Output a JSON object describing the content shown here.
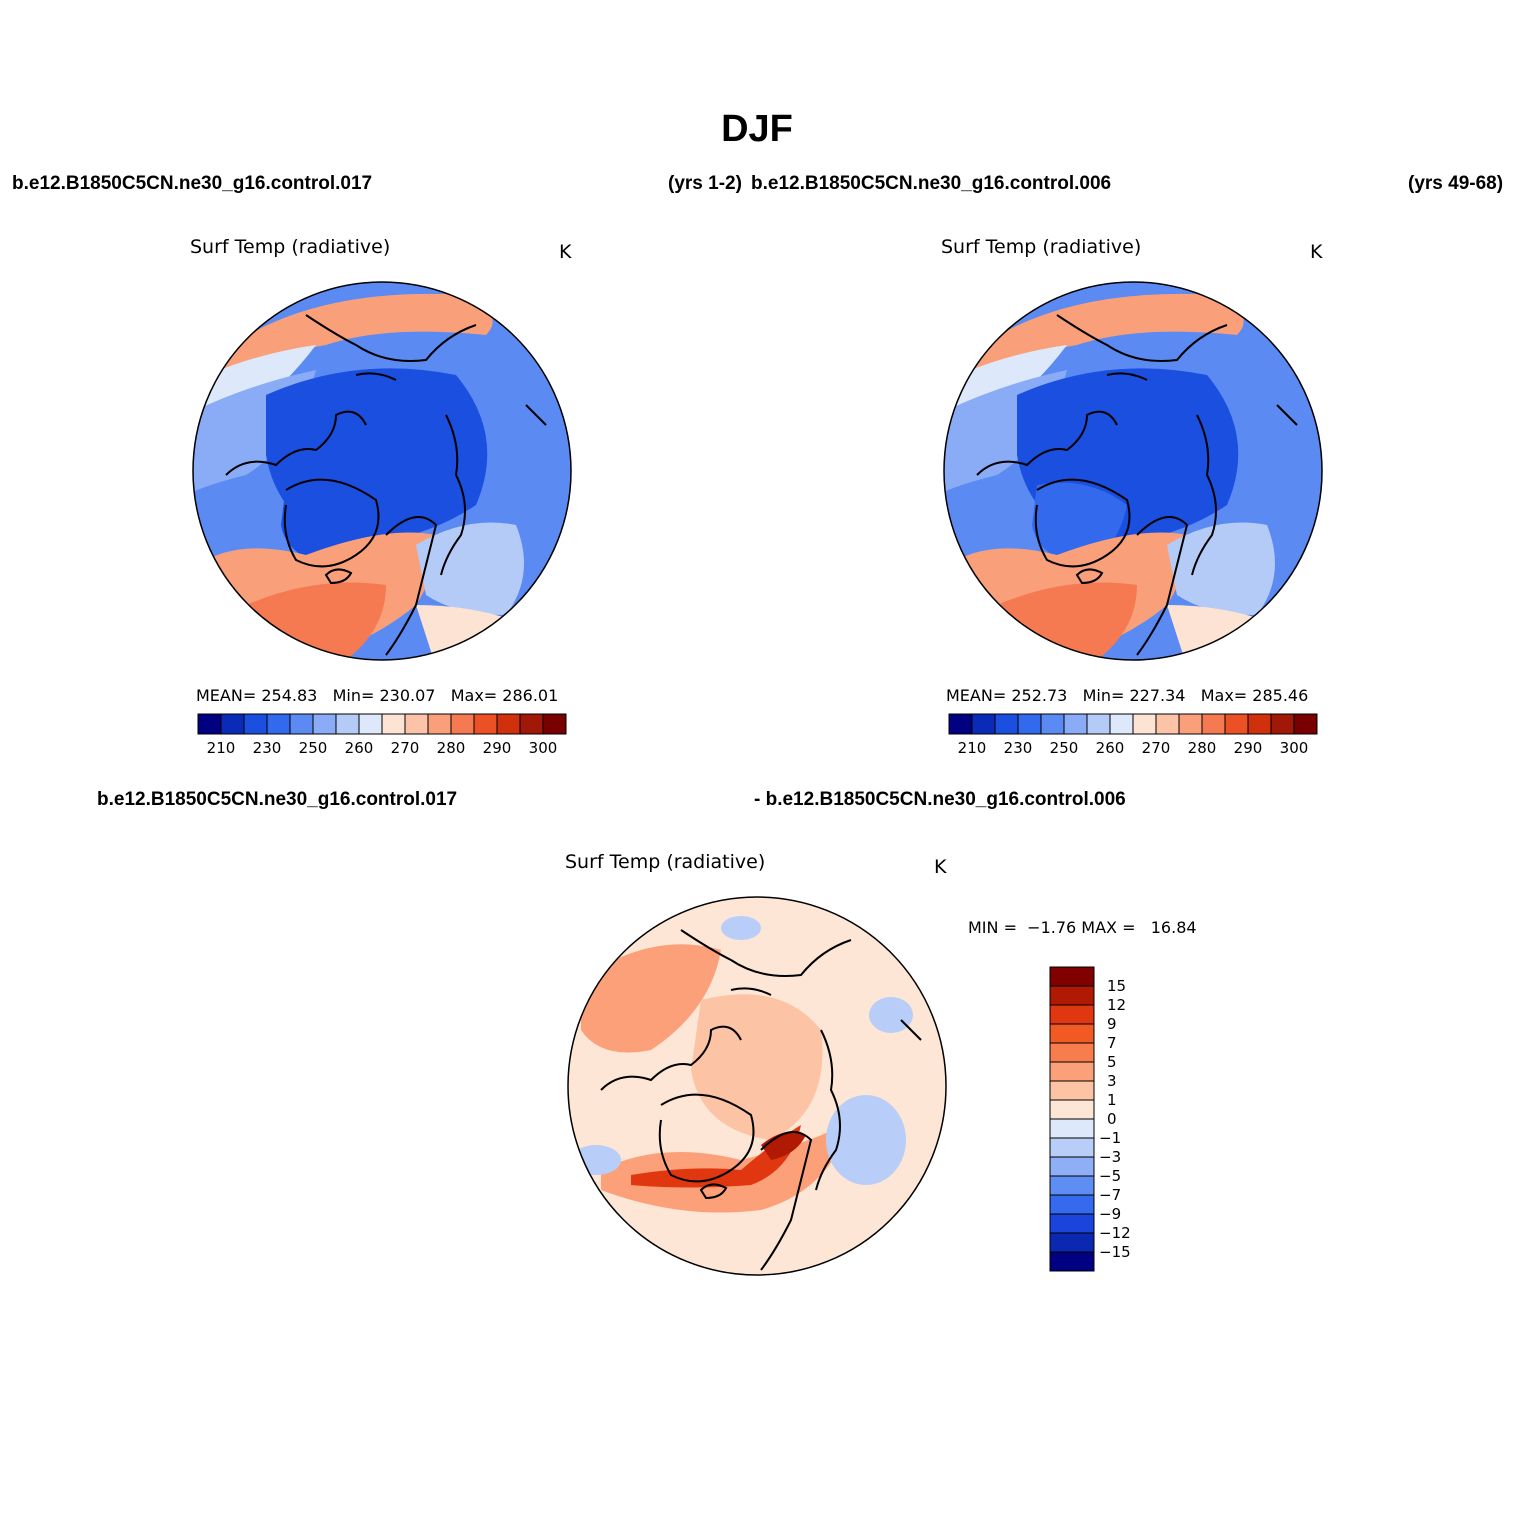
{
  "title": "DJF",
  "case1_label": "b.e12.B1850C5CN.ne30_g16.control.017",
  "case1_years": "(yrs 1-2)",
  "case2_label": "b.e12.B1850C5CN.ne30_g16.control.006",
  "case2_years": "(yrs 49-68)",
  "diff_label_left": "b.e12.B1850C5CN.ne30_g16.control.017",
  "diff_label_right": "- b.e12.B1850C5CN.ne30_g16.control.006",
  "panels": [
    {
      "id": "case1",
      "variable": "Surf Temp (radiative)",
      "units": "K",
      "stats": {
        "mean_label": "MEAN=",
        "mean": "254.83",
        "min_label": "Min=",
        "min": "230.07",
        "max_label": "Max=",
        "max": "286.01"
      }
    },
    {
      "id": "case2",
      "variable": "Surf Temp (radiative)",
      "units": "K",
      "stats": {
        "mean_label": "MEAN=",
        "mean": "252.73",
        "min_label": "Min=",
        "min": "227.34",
        "max_label": "Max=",
        "max": "285.46"
      }
    },
    {
      "id": "diff",
      "variable": "Surf Temp (radiative)",
      "units": "K",
      "stats": {
        "min_label": "MIN =",
        "min": "−1.76",
        "max_label": "MAX =",
        "max": "16.84"
      }
    }
  ],
  "colorbar_abs": {
    "labels": [
      "210",
      "230",
      "250",
      "260",
      "270",
      "280",
      "290",
      "300"
    ],
    "colors": [
      "#000080",
      "#0a2bb8",
      "#1a4fe0",
      "#3369ec",
      "#5a8af2",
      "#8aabf5",
      "#b5cbf7",
      "#dde8fa",
      "#fde3d3",
      "#fcc3a8",
      "#f9a07b",
      "#f57a51",
      "#ec5126",
      "#d1300d",
      "#a11808",
      "#790000"
    ]
  },
  "colorbar_diff": {
    "labels": [
      "15",
      "12",
      "9",
      "7",
      "5",
      "3",
      "1",
      "0",
      "−1",
      "−3",
      "−5",
      "−7",
      "−9",
      "−12",
      "−15"
    ],
    "colors": [
      "#800000",
      "#b01a05",
      "#e03710",
      "#f25a25",
      "#f77d4c",
      "#fba079",
      "#fcc3a5",
      "#fde6d6",
      "#dde8fa",
      "#b8cef8",
      "#8eaef5",
      "#5f8ef2",
      "#356aee",
      "#1a44db",
      "#0a28b0",
      "#000080"
    ]
  },
  "map_fields": {
    "case1": {
      "ocean_north": "#f9a07b",
      "arctic_core": "#1a4fe0",
      "greenland": "#1a4fe0",
      "north_atlantic": "#f57a51",
      "siberia": "#5a8af2",
      "canada": "#3369ec"
    },
    "case2": {
      "ocean_north": "#f9a07b",
      "arctic_core": "#1a4fe0",
      "greenland": "#3369ec",
      "north_atlantic": "#f57a51",
      "siberia": "#5a8af2",
      "canada": "#3369ec"
    },
    "diff": {
      "base": "#fde6d6",
      "warm": "#fba079",
      "hot": "#e03710",
      "cool": "#b8cef8"
    }
  }
}
